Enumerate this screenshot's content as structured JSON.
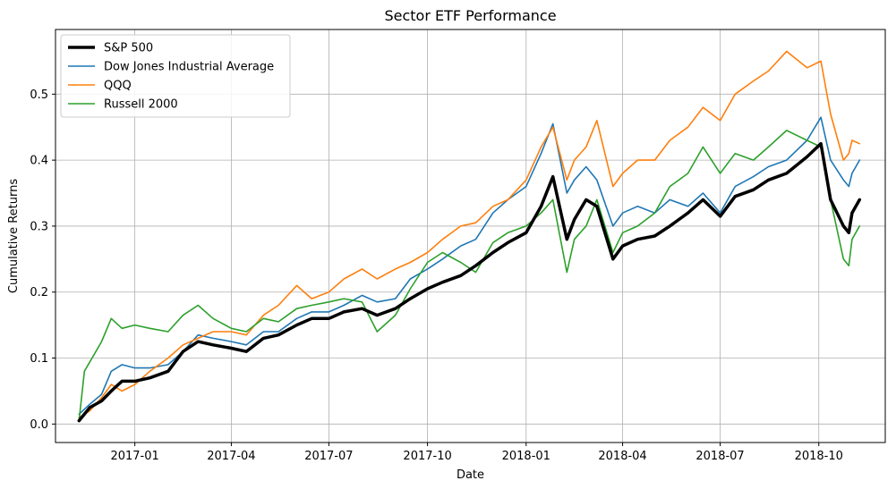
{
  "chart_data": {
    "type": "line",
    "title": "Sector ETF Performance",
    "xlabel": "Date",
    "ylabel": "Cumulative Returns",
    "xlim": [
      "2016-10-19",
      "2018-12-02"
    ],
    "ylim": [
      -0.028,
      0.598
    ],
    "x_ticks": [
      "2017-01",
      "2017-04",
      "2017-07",
      "2017-10",
      "2018-01",
      "2018-04",
      "2018-07",
      "2018-10"
    ],
    "y_ticks": [
      "0.0",
      "0.1",
      "0.2",
      "0.3",
      "0.4",
      "0.5"
    ],
    "grid": true,
    "legend_position": "top-left",
    "series": [
      {
        "name": "S&P 500",
        "color": "#000000",
        "width": 3.5,
        "points": [
          [
            "2016-11-10",
            0.005
          ],
          [
            "2016-11-20",
            0.025
          ],
          [
            "2016-12-01",
            0.035
          ],
          [
            "2016-12-10",
            0.05
          ],
          [
            "2016-12-20",
            0.065
          ],
          [
            "2017-01-01",
            0.065
          ],
          [
            "2017-01-15",
            0.07
          ],
          [
            "2017-02-01",
            0.08
          ],
          [
            "2017-02-15",
            0.11
          ],
          [
            "2017-03-01",
            0.125
          ],
          [
            "2017-03-15",
            0.12
          ],
          [
            "2017-04-01",
            0.115
          ],
          [
            "2017-04-15",
            0.11
          ],
          [
            "2017-05-01",
            0.13
          ],
          [
            "2017-05-15",
            0.135
          ],
          [
            "2017-06-01",
            0.15
          ],
          [
            "2017-06-15",
            0.16
          ],
          [
            "2017-07-01",
            0.16
          ],
          [
            "2017-07-15",
            0.17
          ],
          [
            "2017-08-01",
            0.175
          ],
          [
            "2017-08-15",
            0.165
          ],
          [
            "2017-09-01",
            0.175
          ],
          [
            "2017-09-15",
            0.19
          ],
          [
            "2017-10-01",
            0.205
          ],
          [
            "2017-10-15",
            0.215
          ],
          [
            "2017-11-01",
            0.225
          ],
          [
            "2017-11-15",
            0.24
          ],
          [
            "2017-12-01",
            0.26
          ],
          [
            "2017-12-15",
            0.275
          ],
          [
            "2018-01-01",
            0.29
          ],
          [
            "2018-01-15",
            0.33
          ],
          [
            "2018-01-26",
            0.375
          ],
          [
            "2018-02-08",
            0.28
          ],
          [
            "2018-02-15",
            0.31
          ],
          [
            "2018-02-26",
            0.34
          ],
          [
            "2018-03-08",
            0.33
          ],
          [
            "2018-03-23",
            0.25
          ],
          [
            "2018-04-01",
            0.27
          ],
          [
            "2018-04-15",
            0.28
          ],
          [
            "2018-05-01",
            0.285
          ],
          [
            "2018-05-15",
            0.3
          ],
          [
            "2018-06-01",
            0.32
          ],
          [
            "2018-06-15",
            0.34
          ],
          [
            "2018-07-01",
            0.315
          ],
          [
            "2018-07-15",
            0.345
          ],
          [
            "2018-08-01",
            0.355
          ],
          [
            "2018-08-15",
            0.37
          ],
          [
            "2018-09-01",
            0.38
          ],
          [
            "2018-09-20",
            0.405
          ],
          [
            "2018-10-03",
            0.425
          ],
          [
            "2018-10-12",
            0.34
          ],
          [
            "2018-10-24",
            0.3
          ],
          [
            "2018-10-29",
            0.29
          ],
          [
            "2018-11-01",
            0.32
          ],
          [
            "2018-11-08",
            0.34
          ]
        ]
      },
      {
        "name": "Dow Jones Industrial Average",
        "color": "#1f77b4",
        "width": 1.6,
        "points": [
          [
            "2016-11-10",
            0.015
          ],
          [
            "2016-11-20",
            0.03
          ],
          [
            "2016-12-01",
            0.045
          ],
          [
            "2016-12-10",
            0.08
          ],
          [
            "2016-12-20",
            0.09
          ],
          [
            "2017-01-01",
            0.085
          ],
          [
            "2017-01-15",
            0.085
          ],
          [
            "2017-02-01",
            0.09
          ],
          [
            "2017-02-15",
            0.11
          ],
          [
            "2017-03-01",
            0.135
          ],
          [
            "2017-03-15",
            0.13
          ],
          [
            "2017-04-01",
            0.125
          ],
          [
            "2017-04-15",
            0.12
          ],
          [
            "2017-05-01",
            0.14
          ],
          [
            "2017-05-15",
            0.14
          ],
          [
            "2017-06-01",
            0.16
          ],
          [
            "2017-06-15",
            0.17
          ],
          [
            "2017-07-01",
            0.17
          ],
          [
            "2017-07-15",
            0.18
          ],
          [
            "2017-08-01",
            0.195
          ],
          [
            "2017-08-15",
            0.185
          ],
          [
            "2017-09-01",
            0.19
          ],
          [
            "2017-09-15",
            0.22
          ],
          [
            "2017-10-01",
            0.235
          ],
          [
            "2017-10-15",
            0.25
          ],
          [
            "2017-11-01",
            0.27
          ],
          [
            "2017-11-15",
            0.28
          ],
          [
            "2017-12-01",
            0.32
          ],
          [
            "2017-12-15",
            0.34
          ],
          [
            "2018-01-01",
            0.36
          ],
          [
            "2018-01-15",
            0.41
          ],
          [
            "2018-01-26",
            0.455
          ],
          [
            "2018-02-08",
            0.35
          ],
          [
            "2018-02-15",
            0.37
          ],
          [
            "2018-02-26",
            0.39
          ],
          [
            "2018-03-08",
            0.37
          ],
          [
            "2018-03-23",
            0.3
          ],
          [
            "2018-04-01",
            0.32
          ],
          [
            "2018-04-15",
            0.33
          ],
          [
            "2018-05-01",
            0.32
          ],
          [
            "2018-05-15",
            0.34
          ],
          [
            "2018-06-01",
            0.33
          ],
          [
            "2018-06-15",
            0.35
          ],
          [
            "2018-07-01",
            0.32
          ],
          [
            "2018-07-15",
            0.36
          ],
          [
            "2018-08-01",
            0.375
          ],
          [
            "2018-08-15",
            0.39
          ],
          [
            "2018-09-01",
            0.4
          ],
          [
            "2018-09-20",
            0.43
          ],
          [
            "2018-10-03",
            0.465
          ],
          [
            "2018-10-12",
            0.4
          ],
          [
            "2018-10-24",
            0.37
          ],
          [
            "2018-10-29",
            0.36
          ],
          [
            "2018-11-01",
            0.38
          ],
          [
            "2018-11-08",
            0.4
          ]
        ]
      },
      {
        "name": "QQQ",
        "color": "#ff7f0e",
        "width": 1.6,
        "points": [
          [
            "2016-11-10",
            0.01
          ],
          [
            "2016-11-20",
            0.02
          ],
          [
            "2016-12-01",
            0.04
          ],
          [
            "2016-12-10",
            0.06
          ],
          [
            "2016-12-20",
            0.05
          ],
          [
            "2017-01-01",
            0.06
          ],
          [
            "2017-01-15",
            0.08
          ],
          [
            "2017-02-01",
            0.1
          ],
          [
            "2017-02-15",
            0.12
          ],
          [
            "2017-03-01",
            0.13
          ],
          [
            "2017-03-15",
            0.14
          ],
          [
            "2017-04-01",
            0.14
          ],
          [
            "2017-04-15",
            0.135
          ],
          [
            "2017-05-01",
            0.165
          ],
          [
            "2017-05-15",
            0.18
          ],
          [
            "2017-06-01",
            0.21
          ],
          [
            "2017-06-15",
            0.19
          ],
          [
            "2017-07-01",
            0.2
          ],
          [
            "2017-07-15",
            0.22
          ],
          [
            "2017-08-01",
            0.235
          ],
          [
            "2017-08-15",
            0.22
          ],
          [
            "2017-09-01",
            0.235
          ],
          [
            "2017-09-15",
            0.245
          ],
          [
            "2017-10-01",
            0.26
          ],
          [
            "2017-10-15",
            0.28
          ],
          [
            "2017-11-01",
            0.3
          ],
          [
            "2017-11-15",
            0.305
          ],
          [
            "2017-12-01",
            0.33
          ],
          [
            "2017-12-15",
            0.34
          ],
          [
            "2018-01-01",
            0.37
          ],
          [
            "2018-01-15",
            0.42
          ],
          [
            "2018-01-26",
            0.45
          ],
          [
            "2018-02-08",
            0.37
          ],
          [
            "2018-02-15",
            0.4
          ],
          [
            "2018-02-26",
            0.42
          ],
          [
            "2018-03-08",
            0.46
          ],
          [
            "2018-03-23",
            0.36
          ],
          [
            "2018-04-01",
            0.38
          ],
          [
            "2018-04-15",
            0.4
          ],
          [
            "2018-05-01",
            0.4
          ],
          [
            "2018-05-15",
            0.43
          ],
          [
            "2018-06-01",
            0.45
          ],
          [
            "2018-06-15",
            0.48
          ],
          [
            "2018-07-01",
            0.46
          ],
          [
            "2018-07-15",
            0.5
          ],
          [
            "2018-08-01",
            0.52
          ],
          [
            "2018-08-15",
            0.535
          ],
          [
            "2018-09-01",
            0.565
          ],
          [
            "2018-09-20",
            0.54
          ],
          [
            "2018-10-03",
            0.55
          ],
          [
            "2018-10-12",
            0.47
          ],
          [
            "2018-10-24",
            0.4
          ],
          [
            "2018-10-29",
            0.41
          ],
          [
            "2018-11-01",
            0.43
          ],
          [
            "2018-11-08",
            0.425
          ]
        ]
      },
      {
        "name": "Russell 2000",
        "color": "#2ca02c",
        "width": 1.6,
        "points": [
          [
            "2016-11-10",
            0.005
          ],
          [
            "2016-11-15",
            0.08
          ],
          [
            "2016-12-01",
            0.125
          ],
          [
            "2016-12-10",
            0.16
          ],
          [
            "2016-12-20",
            0.145
          ],
          [
            "2017-01-01",
            0.15
          ],
          [
            "2017-01-15",
            0.145
          ],
          [
            "2017-02-01",
            0.14
          ],
          [
            "2017-02-15",
            0.165
          ],
          [
            "2017-03-01",
            0.18
          ],
          [
            "2017-03-15",
            0.16
          ],
          [
            "2017-04-01",
            0.145
          ],
          [
            "2017-04-15",
            0.14
          ],
          [
            "2017-05-01",
            0.16
          ],
          [
            "2017-05-15",
            0.155
          ],
          [
            "2017-06-01",
            0.175
          ],
          [
            "2017-06-15",
            0.18
          ],
          [
            "2017-07-01",
            0.185
          ],
          [
            "2017-07-15",
            0.19
          ],
          [
            "2017-08-01",
            0.185
          ],
          [
            "2017-08-15",
            0.14
          ],
          [
            "2017-09-01",
            0.165
          ],
          [
            "2017-09-15",
            0.205
          ],
          [
            "2017-10-01",
            0.245
          ],
          [
            "2017-10-15",
            0.26
          ],
          [
            "2017-11-01",
            0.245
          ],
          [
            "2017-11-15",
            0.23
          ],
          [
            "2017-12-01",
            0.275
          ],
          [
            "2017-12-15",
            0.29
          ],
          [
            "2018-01-01",
            0.3
          ],
          [
            "2018-01-15",
            0.32
          ],
          [
            "2018-01-26",
            0.34
          ],
          [
            "2018-02-08",
            0.23
          ],
          [
            "2018-02-15",
            0.28
          ],
          [
            "2018-02-26",
            0.3
          ],
          [
            "2018-03-08",
            0.34
          ],
          [
            "2018-03-23",
            0.26
          ],
          [
            "2018-04-01",
            0.29
          ],
          [
            "2018-04-15",
            0.3
          ],
          [
            "2018-05-01",
            0.32
          ],
          [
            "2018-05-15",
            0.36
          ],
          [
            "2018-06-01",
            0.38
          ],
          [
            "2018-06-15",
            0.42
          ],
          [
            "2018-07-01",
            0.38
          ],
          [
            "2018-07-15",
            0.41
          ],
          [
            "2018-08-01",
            0.4
          ],
          [
            "2018-08-15",
            0.42
          ],
          [
            "2018-09-01",
            0.445
          ],
          [
            "2018-09-20",
            0.43
          ],
          [
            "2018-10-03",
            0.42
          ],
          [
            "2018-10-12",
            0.34
          ],
          [
            "2018-10-24",
            0.25
          ],
          [
            "2018-10-29",
            0.24
          ],
          [
            "2018-11-01",
            0.28
          ],
          [
            "2018-11-08",
            0.3
          ]
        ]
      }
    ]
  }
}
